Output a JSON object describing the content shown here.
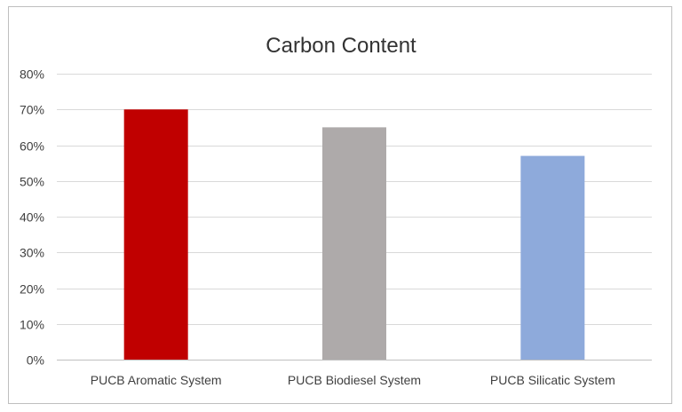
{
  "chart_data": {
    "type": "bar",
    "title": "Carbon Content",
    "xlabel": "",
    "ylabel": "",
    "categories": [
      "PUCB Aromatic System",
      "PUCB Biodiesel System",
      "PUCB Silicatic System"
    ],
    "values": [
      0.7,
      0.65,
      0.57
    ],
    "colors": [
      "#c00000",
      "#aeaaaa",
      "#8eaadb"
    ],
    "ylim": [
      0,
      0.8
    ],
    "y_ticks": [
      {
        "value": 0.0,
        "label": "0%"
      },
      {
        "value": 0.1,
        "label": "10%"
      },
      {
        "value": 0.2,
        "label": "20%"
      },
      {
        "value": 0.3,
        "label": "30%"
      },
      {
        "value": 0.4,
        "label": "40%"
      },
      {
        "value": 0.5,
        "label": "50%"
      },
      {
        "value": 0.6,
        "label": "60%"
      },
      {
        "value": 0.7,
        "label": "70%"
      },
      {
        "value": 0.8,
        "label": "80%"
      }
    ],
    "grid": true,
    "legend": "none"
  }
}
